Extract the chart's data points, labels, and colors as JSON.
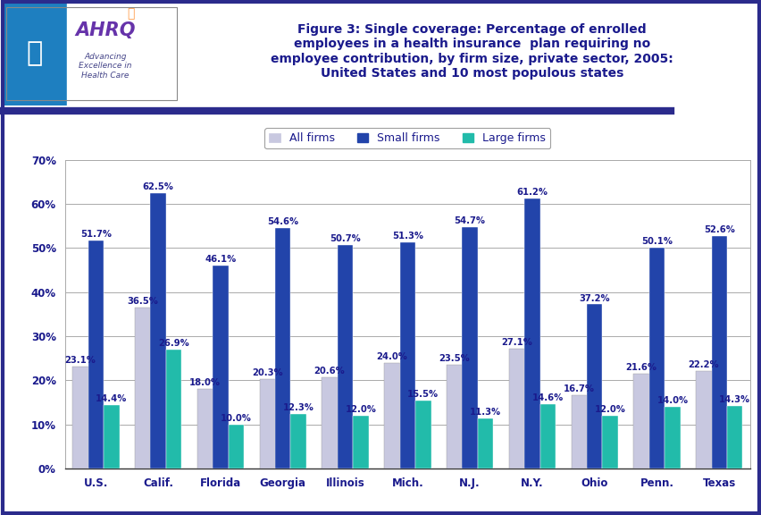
{
  "categories": [
    "U.S.",
    "Calif.",
    "Florida",
    "Georgia",
    "Illinois",
    "Mich.",
    "N.J.",
    "N.Y.",
    "Ohio",
    "Penn.",
    "Texas"
  ],
  "all_firms": [
    23.1,
    36.5,
    18.0,
    20.3,
    20.6,
    24.0,
    23.5,
    27.1,
    16.7,
    21.6,
    22.2
  ],
  "small_firms": [
    51.7,
    62.5,
    46.1,
    54.6,
    50.7,
    51.3,
    54.7,
    61.2,
    37.2,
    50.1,
    52.6
  ],
  "large_firms": [
    14.4,
    26.9,
    10.0,
    12.3,
    12.0,
    15.5,
    11.3,
    14.6,
    12.0,
    14.0,
    14.3
  ],
  "color_all": "#c8c8e0",
  "color_small": "#2244aa",
  "color_large": "#22bbaa",
  "ylim": [
    0,
    70
  ],
  "yticks": [
    0,
    10,
    20,
    30,
    40,
    50,
    60,
    70
  ],
  "ytick_labels": [
    "0%",
    "10%",
    "20%",
    "30%",
    "40%",
    "50%",
    "60%",
    "70%"
  ],
  "legend_labels": [
    "All firms",
    "Small firms",
    "Large firms"
  ],
  "title_line1": "Figure 3: Single coverage: Percentage of enrolled",
  "title_line2": "employees in a health insurance  plan requiring no",
  "title_line3": "employee contribution, by firm size, private sector, 2005:",
  "title_line4": "United States and 10 most populous states",
  "title_color": "#1a1a8c",
  "bar_width": 0.25,
  "label_fontsize": 7.2,
  "axis_label_fontsize": 8.5,
  "outer_border_color": "#2b2b8c",
  "separator_color": "#2b2b8c",
  "bg_color": "#ffffff",
  "header_bg": "#ffffff",
  "chart_bg": "#ffffff",
  "logo_bg": "#1e7fc0",
  "logo_right_bg": "#ffffff"
}
